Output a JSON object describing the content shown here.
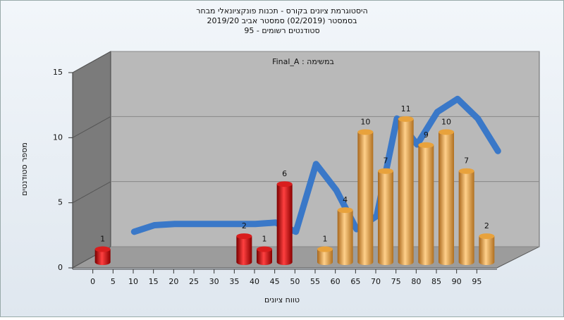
{
  "chart_data": {
    "type": "bar",
    "title": "היסטוגרמת ציונים בקורס - תכנות פונקציונאלי מבחר",
    "subtitle": "בסמסטר  (02/2019)  סמסטר אביב 2019/20",
    "subtitle2": "סטודנטים רשומים - 95",
    "annotation": "במשימה : Final_A",
    "ylabel": "מספר סטודנטים",
    "xlabel": "טווח ציונים",
    "categories": [
      "0",
      "5",
      "10",
      "15",
      "20",
      "25",
      "30",
      "35",
      "40",
      "45",
      "50",
      "55",
      "60",
      "65",
      "70",
      "75",
      "80",
      "85",
      "90",
      "95"
    ],
    "values": [
      1,
      0,
      0,
      0,
      0,
      0,
      0,
      2,
      1,
      6,
      0,
      1,
      4,
      10,
      7,
      11,
      9,
      10,
      7,
      2
    ],
    "colors": [
      "#d91e1e",
      "#d91e1e",
      "#d91e1e",
      "#d91e1e",
      "#d91e1e",
      "#d91e1e",
      "#d91e1e",
      "#d91e1e",
      "#d91e1e",
      "#d91e1e",
      "#d91e1e",
      "#e8a23c",
      "#e8a23c",
      "#e8a23c",
      "#e8a23c",
      "#e8a23c",
      "#e8a23c",
      "#e8a23c",
      "#e8a23c",
      "#e8a23c"
    ],
    "trend": [
      null,
      1.8,
      2.3,
      2.4,
      2.4,
      2.4,
      2.4,
      2.4,
      2.5,
      1.8,
      7,
      5,
      2,
      3,
      10.5,
      8.5,
      11,
      12,
      10.5,
      8
    ],
    "trend_color": "#3a78c8",
    "ylim": [
      0,
      15
    ],
    "yticks": [
      0,
      5,
      10,
      15
    ],
    "grid": true
  }
}
